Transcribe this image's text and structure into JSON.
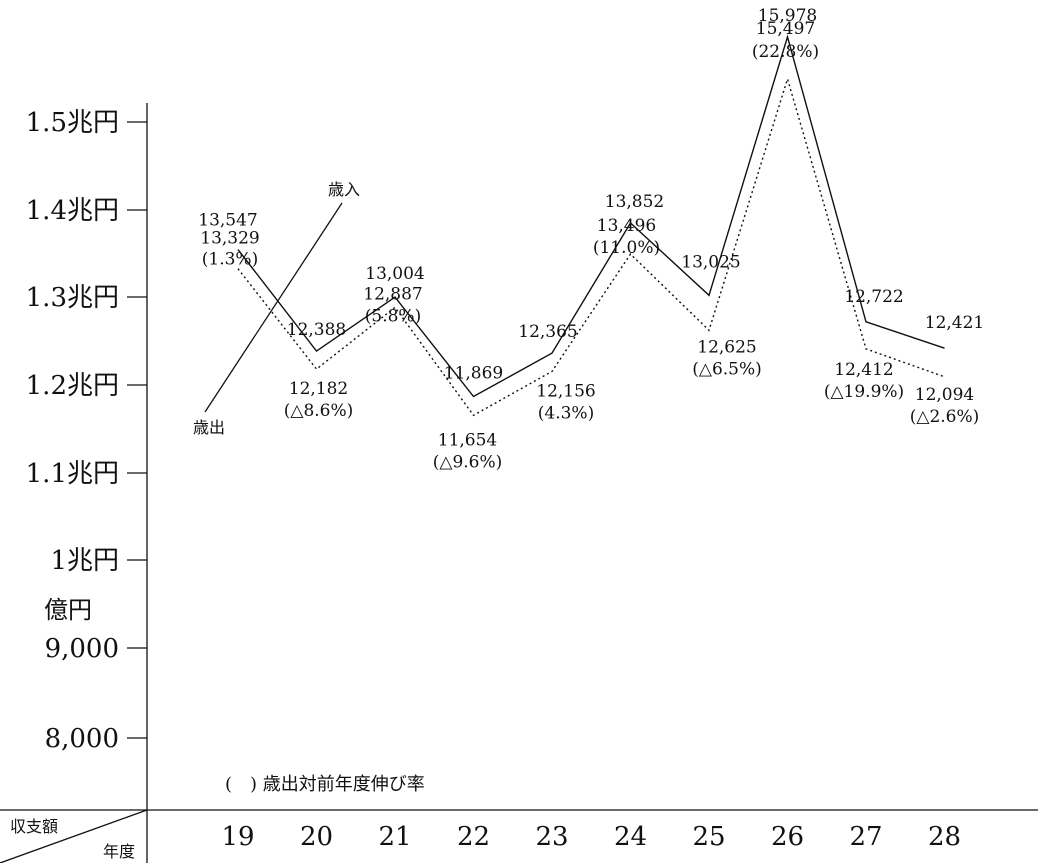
{
  "chart_data": {
    "type": "line",
    "categories": [
      "19",
      "20",
      "21",
      "22",
      "23",
      "24",
      "25",
      "26",
      "27",
      "28"
    ],
    "series": [
      {
        "name": "歳入",
        "style": "solid",
        "values": [
          13547,
          12388,
          13004,
          11869,
          12365,
          13852,
          13025,
          15978,
          12722,
          12421
        ],
        "labels": [
          "13,547",
          "12,388",
          "13,004",
          "11,869",
          "12,365",
          "13,852",
          "13,025",
          "15,978",
          "12,722",
          "12,421"
        ]
      },
      {
        "name": "歳出",
        "style": "dotted",
        "values": [
          13329,
          12182,
          12887,
          11654,
          12156,
          13496,
          12625,
          15497,
          12412,
          12094
        ],
        "labels": [
          "13,329",
          "12,182",
          "12,887",
          "11,654",
          "12,156",
          "13,496",
          "12,625",
          "15,497",
          "12,412",
          "12,094"
        ],
        "growth_rates": [
          "(1.3%)",
          "(△8.6%)",
          "(5.8%)",
          "(△9.6%)",
          "(4.3%)",
          "(11.0%)",
          "(△6.5%)",
          "(22.8%)",
          "(△19.9%)",
          "(△2.6%)"
        ]
      }
    ],
    "y_ticks": [
      {
        "value": 8000,
        "label": "8,000"
      },
      {
        "value": 9000,
        "label": "9,000"
      },
      {
        "value": 10000,
        "label": "1兆円"
      },
      {
        "value": 11000,
        "label": "1.1兆円"
      },
      {
        "value": 12000,
        "label": "1.2兆円"
      },
      {
        "value": 13000,
        "label": "1.3兆円"
      },
      {
        "value": 14000,
        "label": "1.4兆円"
      },
      {
        "value": 15000,
        "label": "1.5兆円"
      }
    ],
    "y_unit": "億円",
    "ylim": [
      7000,
      16000
    ],
    "corner_top": "収支額",
    "corner_bottom": "年度",
    "note": "(　) 歳出対前年度伸び率",
    "legend": "inline labels",
    "grid": false
  }
}
